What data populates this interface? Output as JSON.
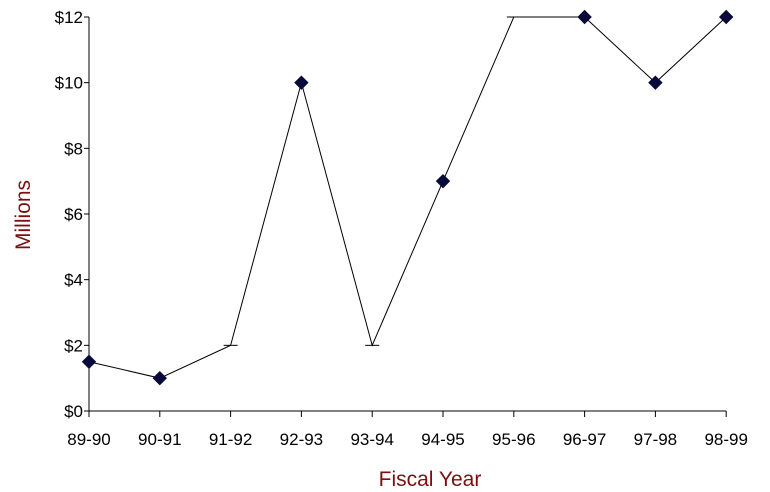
{
  "colors": {
    "axis_title": "#7b0f0f",
    "axis": "#000000",
    "line": "#000000",
    "marker": "#0a0a3a"
  },
  "chart_data": {
    "type": "line",
    "xlabel": "Fiscal Year",
    "ylabel": "Millions",
    "categories": [
      "89-90",
      "90-91",
      "91-92",
      "92-93",
      "93-94",
      "94-95",
      "95-96",
      "96-97",
      "97-98",
      "98-99"
    ],
    "values": [
      1.5,
      1,
      2,
      10,
      2,
      7,
      12,
      12,
      10,
      12
    ],
    "markers": [
      "diamond",
      "diamond",
      "none",
      "diamond",
      "none",
      "diamond",
      "none",
      "diamond",
      "diamond",
      "diamond"
    ],
    "ylim": [
      0,
      12
    ],
    "yticks": [
      0,
      2,
      4,
      6,
      8,
      10,
      12
    ],
    "ytick_labels": [
      "$0",
      "$2",
      "$4",
      "$6",
      "$8",
      "$10",
      "$12"
    ],
    "grid": false,
    "legend": "none"
  }
}
